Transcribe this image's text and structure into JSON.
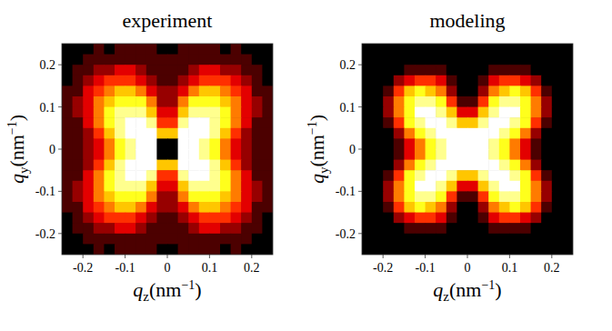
{
  "chart_data": [
    {
      "type": "heatmap",
      "title": "experiment",
      "xlabel": "qz(nm−1)",
      "ylabel": "qy(nm−1)",
      "xlim": [
        -0.25,
        0.25
      ],
      "ylim": [
        -0.25,
        0.25
      ],
      "xticks": [
        -0.2,
        -0.1,
        0,
        0.1,
        0.2
      ],
      "yticks": [
        -0.2,
        -0.1,
        0,
        0.1,
        0.2
      ],
      "color_range": [
        0,
        9
      ],
      "x": [
        -0.2375,
        -0.2125,
        -0.1875,
        -0.1625,
        -0.1375,
        -0.1125,
        -0.0875,
        -0.0625,
        -0.0375,
        -0.0125,
        0.0125,
        0.0375,
        0.0625,
        0.0875,
        0.1125,
        0.1375,
        0.1625,
        0.1875,
        0.2125,
        0.2375
      ],
      "y": [
        0.2375,
        0.2125,
        0.1875,
        0.1625,
        0.1375,
        0.1125,
        0.0875,
        0.0625,
        0.0375,
        0.0125,
        -0.0125,
        -0.0375,
        -0.0625,
        -0.0875,
        -0.1125,
        -0.1375,
        -0.1625,
        -0.1875,
        -0.2125,
        -0.2375
      ],
      "cells": [
        [
          0,
          0,
          0,
          1,
          0,
          1,
          1,
          1,
          1,
          0,
          0,
          1,
          1,
          1,
          1,
          0,
          1,
          0,
          0,
          0
        ],
        [
          0,
          0,
          1,
          1,
          1,
          1,
          1,
          1,
          1,
          1,
          1,
          1,
          1,
          1,
          1,
          1,
          1,
          1,
          0,
          0
        ],
        [
          0,
          1,
          1,
          2,
          2,
          3,
          3,
          2,
          1,
          1,
          1,
          1,
          2,
          3,
          3,
          2,
          2,
          1,
          1,
          0
        ],
        [
          0,
          1,
          2,
          3,
          4,
          4,
          4,
          3,
          2,
          1,
          1,
          2,
          3,
          4,
          4,
          4,
          3,
          2,
          1,
          0
        ],
        [
          1,
          1,
          3,
          4,
          5,
          6,
          6,
          5,
          3,
          2,
          2,
          3,
          5,
          6,
          6,
          5,
          4,
          3,
          1,
          1
        ],
        [
          1,
          2,
          3,
          5,
          6,
          7,
          7,
          7,
          5,
          2,
          2,
          5,
          7,
          7,
          7,
          6,
          5,
          3,
          2,
          1
        ],
        [
          1,
          2,
          3,
          5,
          7,
          8,
          8,
          8,
          6,
          3,
          3,
          6,
          8,
          8,
          8,
          7,
          5,
          3,
          2,
          1
        ],
        [
          1,
          1,
          3,
          5,
          7,
          8,
          9,
          9,
          8,
          4,
          4,
          8,
          9,
          9,
          8,
          7,
          5,
          3,
          1,
          1
        ],
        [
          1,
          1,
          2,
          4,
          6,
          8,
          9,
          9,
          9,
          6,
          6,
          9,
          9,
          9,
          8,
          6,
          4,
          2,
          1,
          1
        ],
        [
          1,
          1,
          2,
          3,
          5,
          7,
          8,
          9,
          9,
          0,
          0,
          9,
          9,
          8,
          7,
          5,
          3,
          2,
          1,
          1
        ],
        [
          1,
          1,
          2,
          3,
          5,
          7,
          8,
          9,
          9,
          0,
          0,
          9,
          9,
          8,
          7,
          5,
          3,
          2,
          1,
          1
        ],
        [
          1,
          1,
          2,
          4,
          6,
          8,
          9,
          9,
          9,
          6,
          6,
          9,
          9,
          9,
          8,
          6,
          4,
          2,
          1,
          1
        ],
        [
          1,
          1,
          3,
          5,
          7,
          8,
          9,
          9,
          8,
          4,
          4,
          8,
          9,
          9,
          8,
          7,
          5,
          3,
          1,
          1
        ],
        [
          1,
          2,
          3,
          5,
          7,
          8,
          8,
          8,
          6,
          3,
          3,
          6,
          8,
          8,
          8,
          7,
          5,
          3,
          2,
          1
        ],
        [
          1,
          2,
          3,
          5,
          6,
          7,
          7,
          7,
          5,
          2,
          2,
          5,
          7,
          7,
          7,
          6,
          5,
          3,
          2,
          1
        ],
        [
          1,
          1,
          3,
          4,
          5,
          6,
          6,
          5,
          3,
          2,
          2,
          3,
          5,
          6,
          6,
          5,
          4,
          3,
          1,
          1
        ],
        [
          0,
          1,
          2,
          3,
          4,
          4,
          4,
          3,
          2,
          1,
          1,
          2,
          3,
          4,
          4,
          4,
          3,
          2,
          1,
          0
        ],
        [
          0,
          1,
          1,
          2,
          2,
          3,
          3,
          2,
          1,
          1,
          1,
          1,
          2,
          3,
          3,
          2,
          2,
          1,
          1,
          0
        ],
        [
          0,
          0,
          1,
          1,
          1,
          1,
          1,
          1,
          1,
          1,
          1,
          1,
          1,
          1,
          1,
          1,
          1,
          1,
          0,
          0
        ],
        [
          0,
          0,
          0,
          1,
          0,
          1,
          1,
          1,
          1,
          0,
          0,
          1,
          1,
          1,
          1,
          0,
          1,
          0,
          0,
          0
        ]
      ]
    },
    {
      "type": "heatmap",
      "title": "modeling",
      "xlabel": "qz(nm−1)",
      "ylabel": "qy(nm−1)",
      "xlim": [
        -0.25,
        0.25
      ],
      "ylim": [
        -0.25,
        0.25
      ],
      "xticks": [
        -0.2,
        -0.1,
        0,
        0.1,
        0.2
      ],
      "yticks": [
        -0.2,
        -0.1,
        0,
        0.1,
        0.2
      ],
      "color_range": [
        0,
        9
      ],
      "x": [
        -0.2375,
        -0.2125,
        -0.1875,
        -0.1625,
        -0.1375,
        -0.1125,
        -0.0875,
        -0.0625,
        -0.0375,
        -0.0125,
        0.0125,
        0.0375,
        0.0625,
        0.0875,
        0.1125,
        0.1375,
        0.1625,
        0.1875,
        0.2125,
        0.2375
      ],
      "y": [
        0.2375,
        0.2125,
        0.1875,
        0.1625,
        0.1375,
        0.1125,
        0.0875,
        0.0625,
        0.0375,
        0.0125,
        -0.0125,
        -0.0375,
        -0.0625,
        -0.0875,
        -0.1125,
        -0.1375,
        -0.1625,
        -0.1875,
        -0.2125,
        -0.2375
      ],
      "cells": [
        [
          0,
          0,
          0,
          0,
          0,
          0,
          0,
          0,
          0,
          0,
          0,
          0,
          0,
          0,
          0,
          0,
          0,
          0,
          0,
          0
        ],
        [
          0,
          0,
          0,
          0,
          0,
          0,
          0,
          0,
          0,
          0,
          0,
          0,
          0,
          0,
          0,
          0,
          0,
          0,
          0,
          0
        ],
        [
          0,
          0,
          0,
          0,
          1,
          1,
          1,
          1,
          0,
          0,
          0,
          0,
          1,
          1,
          1,
          1,
          0,
          0,
          0,
          0
        ],
        [
          0,
          0,
          0,
          2,
          3,
          4,
          4,
          3,
          1,
          0,
          0,
          1,
          3,
          4,
          4,
          3,
          2,
          0,
          0,
          0
        ],
        [
          0,
          0,
          1,
          4,
          6,
          7,
          6,
          5,
          2,
          0,
          0,
          2,
          5,
          6,
          7,
          6,
          4,
          1,
          0,
          0
        ],
        [
          0,
          0,
          2,
          5,
          7,
          8,
          8,
          7,
          4,
          1,
          1,
          4,
          7,
          8,
          8,
          7,
          5,
          2,
          0,
          0
        ],
        [
          0,
          0,
          2,
          5,
          7,
          9,
          9,
          8,
          6,
          3,
          3,
          6,
          8,
          9,
          9,
          7,
          5,
          2,
          0,
          0
        ],
        [
          0,
          0,
          1,
          4,
          7,
          8,
          9,
          9,
          8,
          6,
          6,
          8,
          9,
          9,
          8,
          7,
          4,
          1,
          0,
          0
        ],
        [
          0,
          0,
          0,
          2,
          5,
          7,
          8,
          9,
          9,
          9,
          9,
          9,
          9,
          8,
          7,
          5,
          2,
          0,
          0,
          0
        ],
        [
          0,
          0,
          0,
          1,
          3,
          5,
          7,
          8,
          9,
          9,
          9,
          9,
          8,
          7,
          5,
          3,
          1,
          0,
          0,
          0
        ],
        [
          0,
          0,
          0,
          1,
          3,
          5,
          7,
          8,
          9,
          9,
          9,
          9,
          8,
          7,
          5,
          3,
          1,
          0,
          0,
          0
        ],
        [
          0,
          0,
          0,
          2,
          5,
          7,
          8,
          9,
          9,
          9,
          9,
          9,
          9,
          8,
          7,
          5,
          2,
          0,
          0,
          0
        ],
        [
          0,
          0,
          1,
          4,
          7,
          8,
          9,
          9,
          8,
          6,
          6,
          8,
          9,
          9,
          8,
          7,
          4,
          1,
          0,
          0
        ],
        [
          0,
          0,
          2,
          5,
          7,
          9,
          9,
          8,
          6,
          3,
          3,
          6,
          8,
          9,
          9,
          7,
          5,
          2,
          0,
          0
        ],
        [
          0,
          0,
          2,
          5,
          7,
          8,
          8,
          7,
          4,
          1,
          1,
          4,
          7,
          8,
          8,
          7,
          5,
          2,
          0,
          0
        ],
        [
          0,
          0,
          1,
          4,
          6,
          7,
          6,
          5,
          2,
          0,
          0,
          2,
          5,
          6,
          7,
          6,
          4,
          1,
          0,
          0
        ],
        [
          0,
          0,
          0,
          2,
          3,
          4,
          4,
          3,
          1,
          0,
          0,
          1,
          3,
          4,
          4,
          3,
          2,
          0,
          0,
          0
        ],
        [
          0,
          0,
          0,
          0,
          1,
          1,
          1,
          1,
          0,
          0,
          0,
          0,
          1,
          1,
          1,
          1,
          0,
          0,
          0,
          0
        ],
        [
          0,
          0,
          0,
          0,
          0,
          0,
          0,
          0,
          0,
          0,
          0,
          0,
          0,
          0,
          0,
          0,
          0,
          0,
          0,
          0
        ],
        [
          0,
          0,
          0,
          0,
          0,
          0,
          0,
          0,
          0,
          0,
          0,
          0,
          0,
          0,
          0,
          0,
          0,
          0,
          0,
          0
        ]
      ]
    }
  ]
}
